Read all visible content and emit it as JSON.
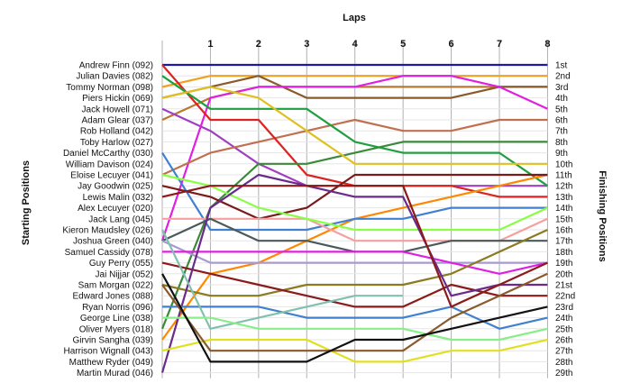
{
  "chart_data": {
    "type": "line",
    "title": "Laps",
    "ylabel_left": "Starting Positions",
    "ylabel_right": "Finishing Positions",
    "laps": [
      1,
      2,
      3,
      4,
      5,
      6,
      7,
      8
    ],
    "position_count": 29,
    "grid": true,
    "start_labels": [
      "Andrew Finn (092)",
      "Julian Davies (082)",
      "Tommy Norman (098)",
      "Piers Hickin (069)",
      "Jack Howell (071)",
      "Adam Glear (037)",
      "Rob Holland (042)",
      "Toby Harlow (027)",
      "Daniel McCarthy (030)",
      "William Davison (024)",
      "Eloise Lecuyer (041)",
      "Jay Goodwin (025)",
      "Lewis Malin (032)",
      "Alex Lecuyer (020)",
      "Jack Lang (045)",
      "Kieron Maudsley (026)",
      "Joshua Green (040)",
      "Samuel Cassidy (078)",
      "Guy Perry (055)",
      "Jai Nijjar (052)",
      "Sam Morgan (022)",
      "Edward Jones (088)",
      "Ryan Norris (096)",
      "George Line (038)",
      "Oliver Myers (018)",
      "Girvin Sangha (039)",
      "Harrison Wignall (043)",
      "Matthew Ryder (049)",
      "Martin Murad (046)"
    ],
    "finish_labels": [
      "1st",
      "2nd",
      "3rd",
      "4th",
      "5th",
      "6th",
      "7th",
      "8th",
      "9th",
      "10th",
      "11th",
      "12th",
      "13th",
      "14th",
      "15th",
      "16th",
      "17th",
      "18th",
      "19th",
      "20th",
      "21st",
      "22nd",
      "23rd",
      "24th",
      "25th",
      "26th",
      "27th",
      "28th",
      "29th"
    ],
    "series": [
      {
        "color": "#1a1aa6",
        "positions": [
          1,
          1,
          1,
          1,
          1,
          1,
          1,
          1,
          1
        ]
      },
      {
        "color": "#f0a020",
        "positions": [
          3,
          2,
          2,
          2,
          2,
          2,
          2,
          2,
          2
        ]
      },
      {
        "color": "#b87830",
        "positions": [
          6,
          4,
          3,
          3,
          3,
          3,
          3,
          3,
          3
        ]
      },
      {
        "color": "#8b5a2b",
        "positions": [
          4,
          3,
          2,
          4,
          4,
          4,
          4,
          3,
          3
        ]
      },
      {
        "color": "#a040c0",
        "positions": [
          5,
          7,
          10,
          12,
          12,
          12,
          12,
          12,
          12
        ]
      },
      {
        "color": "#e020e0",
        "positions": [
          17,
          4,
          3,
          3,
          3,
          2,
          2,
          3,
          5
        ]
      },
      {
        "color": "#c07050",
        "positions": [
          11,
          9,
          8,
          7,
          6,
          7,
          7,
          6,
          6
        ]
      },
      {
        "color": "#dd2222",
        "positions": [
          1,
          6,
          6,
          11,
          12,
          12,
          12,
          13,
          13
        ]
      },
      {
        "color": "#1f9f3f",
        "positions": [
          2,
          5,
          5,
          5,
          8,
          9,
          9,
          9,
          12
        ]
      },
      {
        "color": "#ff8800",
        "positions": [
          26,
          20,
          19,
          17,
          15,
          14,
          13,
          12,
          11
        ]
      },
      {
        "color": "#3a8a3a",
        "positions": [
          25,
          14,
          10,
          10,
          9,
          8,
          8,
          8,
          8
        ]
      },
      {
        "color": "#4080d0",
        "positions": [
          9,
          16,
          16,
          16,
          15,
          15,
          14,
          14,
          14
        ]
      },
      {
        "color": "#e0c020",
        "positions": [
          4,
          3,
          4,
          7,
          10,
          10,
          10,
          10,
          10
        ]
      },
      {
        "color": "#7a1a1a",
        "positions": [
          12,
          13,
          15,
          14,
          11,
          11,
          11,
          11,
          11
        ]
      },
      {
        "color": "#f4a0a0",
        "positions": [
          15,
          15,
          15,
          15,
          17,
          17,
          17,
          17,
          15
        ]
      },
      {
        "color": "#88ff44",
        "positions": [
          11,
          12,
          14,
          15,
          16,
          16,
          16,
          16,
          14
        ]
      },
      {
        "color": "#4a5a5a",
        "positions": [
          17,
          15,
          17,
          17,
          18,
          18,
          17,
          17,
          17
        ]
      },
      {
        "color": "#a89ad0",
        "positions": [
          17,
          19,
          19,
          19,
          19,
          19,
          19,
          19,
          19
        ]
      },
      {
        "color": "#e020e0",
        "positions": [
          18,
          18,
          18,
          18,
          18,
          18,
          19,
          20,
          19
        ]
      },
      {
        "color": "#8a7a20",
        "positions": [
          21,
          22,
          22,
          21,
          21,
          21,
          20,
          18,
          16
        ]
      },
      {
        "color": "#8b1a1a",
        "positions": [
          19,
          20,
          21,
          22,
          23,
          23,
          21,
          22,
          22
        ]
      },
      {
        "color": "#6a2a8a",
        "positions": [
          29,
          14,
          11,
          12,
          13,
          13,
          22,
          21,
          21
        ]
      },
      {
        "color": "#4080d0",
        "positions": [
          23,
          23,
          23,
          24,
          24,
          24,
          23,
          25,
          24
        ]
      },
      {
        "color": "#80c0b0",
        "positions": [
          16,
          25,
          24,
          23,
          22,
          22,
          null,
          null,
          null
        ]
      },
      {
        "color": "#88ee88",
        "positions": [
          24,
          24,
          25,
          25,
          25,
          25,
          26,
          26,
          25
        ]
      },
      {
        "color": "#e0e020",
        "positions": [
          27,
          26,
          26,
          26,
          28,
          28,
          27,
          27,
          26
        ]
      },
      {
        "color": "#8b5a2b",
        "positions": [
          21,
          27,
          27,
          27,
          27,
          27,
          24,
          22,
          20
        ]
      },
      {
        "color": "#111111",
        "positions": [
          20,
          28,
          28,
          28,
          26,
          26,
          25,
          24,
          23
        ]
      },
      {
        "color": "#8b1a1a",
        "positions": [
          13,
          12,
          12,
          12,
          12,
          12,
          23,
          21,
          19
        ]
      }
    ]
  }
}
